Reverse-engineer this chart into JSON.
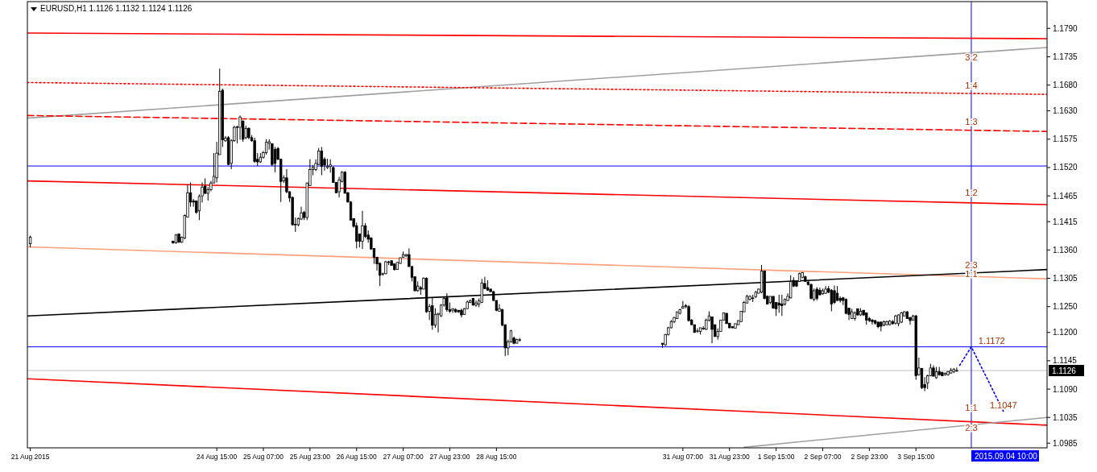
{
  "chart_data": {
    "type": "candlestick",
    "title": "EURUSD,H1  1.1126 1.1132 1.1124 1.1126",
    "x": [
      "2015-08-21T23:00",
      "2015-08-24T00:00",
      "2015-08-24T01:00",
      "2015-08-24T02:00",
      "2015-08-24T03:00",
      "2015-08-24T04:00",
      "2015-08-24T05:00",
      "2015-08-24T06:00",
      "2015-08-24T07:00",
      "2015-08-24T08:00",
      "2015-08-24T09:00",
      "2015-08-24T10:00",
      "2015-08-24T11:00",
      "2015-08-24T12:00",
      "2015-08-24T13:00",
      "2015-08-24T14:00",
      "2015-08-24T15:00",
      "2015-08-24T16:00",
      "2015-08-24T17:00",
      "2015-08-24T18:00",
      "2015-08-24T19:00",
      "2015-08-24T20:00",
      "2015-08-24T21:00",
      "2015-08-24T22:00",
      "2015-08-24T23:00",
      "2015-08-25T00:00",
      "2015-08-25T01:00",
      "2015-08-25T02:00",
      "2015-08-25T03:00",
      "2015-08-25T04:00",
      "2015-08-25T05:00",
      "2015-08-25T06:00",
      "2015-08-25T07:00",
      "2015-08-25T08:00",
      "2015-08-25T09:00",
      "2015-08-25T10:00",
      "2015-08-25T11:00",
      "2015-08-25T12:00",
      "2015-08-25T13:00",
      "2015-08-25T14:00",
      "2015-08-25T15:00",
      "2015-08-25T16:00",
      "2015-08-25T17:00",
      "2015-08-25T18:00",
      "2015-08-25T19:00",
      "2015-08-25T20:00",
      "2015-08-25T21:00",
      "2015-08-25T22:00",
      "2015-08-25T23:00",
      "2015-08-26T00:00",
      "2015-08-26T01:00",
      "2015-08-26T02:00",
      "2015-08-26T03:00",
      "2015-08-26T04:00",
      "2015-08-26T05:00",
      "2015-08-26T06:00",
      "2015-08-26T07:00",
      "2015-08-26T08:00",
      "2015-08-26T09:00",
      "2015-08-26T10:00",
      "2015-08-26T11:00",
      "2015-08-26T12:00",
      "2015-08-26T13:00",
      "2015-08-26T14:00",
      "2015-08-26T15:00",
      "2015-08-26T16:00",
      "2015-08-26T17:00",
      "2015-08-26T18:00",
      "2015-08-26T19:00",
      "2015-08-26T20:00",
      "2015-08-26T21:00",
      "2015-08-26T22:00",
      "2015-08-26T23:00",
      "2015-08-27T00:00",
      "2015-08-27T01:00",
      "2015-08-27T02:00",
      "2015-08-27T03:00",
      "2015-08-27T04:00",
      "2015-08-27T05:00",
      "2015-08-27T06:00",
      "2015-08-27T07:00",
      "2015-08-27T08:00",
      "2015-08-27T09:00",
      "2015-08-27T10:00",
      "2015-08-27T11:00",
      "2015-08-27T12:00",
      "2015-08-27T13:00",
      "2015-08-27T14:00",
      "2015-08-27T15:00",
      "2015-08-27T16:00",
      "2015-08-27T17:00",
      "2015-08-27T18:00",
      "2015-08-27T19:00",
      "2015-08-27T20:00",
      "2015-08-27T21:00",
      "2015-08-27T22:00",
      "2015-08-27T23:00",
      "2015-08-28T00:00",
      "2015-08-28T01:00",
      "2015-08-28T02:00",
      "2015-08-28T03:00",
      "2015-08-28T04:00",
      "2015-08-28T05:00",
      "2015-08-28T06:00",
      "2015-08-28T07:00",
      "2015-08-28T08:00",
      "2015-08-28T09:00",
      "2015-08-28T10:00",
      "2015-08-28T11:00",
      "2015-08-28T12:00",
      "2015-08-28T13:00",
      "2015-08-28T14:00",
      "2015-08-28T15:00",
      "2015-08-28T16:00",
      "2015-08-28T17:00",
      "2015-08-28T18:00",
      "2015-08-28T19:00",
      "2015-08-28T20:00",
      "2015-08-28T21:00",
      "2015-08-28T22:00",
      "2015-08-28T23:00",
      "2015-08-31T00:00",
      "2015-08-31T01:00",
      "2015-08-31T02:00",
      "2015-08-31T03:00",
      "2015-08-31T04:00",
      "2015-08-31T05:00",
      "2015-08-31T06:00",
      "2015-08-31T07:00",
      "2015-08-31T08:00",
      "2015-08-31T09:00",
      "2015-08-31T10:00",
      "2015-08-31T11:00",
      "2015-08-31T12:00",
      "2015-08-31T13:00",
      "2015-08-31T14:00",
      "2015-08-31T15:00",
      "2015-08-31T16:00",
      "2015-08-31T17:00",
      "2015-08-31T18:00",
      "2015-08-31T19:00",
      "2015-08-31T20:00",
      "2015-08-31T21:00",
      "2015-08-31T22:00",
      "2015-08-31T23:00",
      "2015-09-01T00:00",
      "2015-09-01T01:00",
      "2015-09-01T02:00",
      "2015-09-01T03:00",
      "2015-09-01T04:00",
      "2015-09-01T05:00",
      "2015-09-01T06:00",
      "2015-09-01T07:00",
      "2015-09-01T08:00",
      "2015-09-01T09:00",
      "2015-09-01T10:00",
      "2015-09-01T11:00",
      "2015-09-01T12:00",
      "2015-09-01T13:00",
      "2015-09-01T14:00",
      "2015-09-01T15:00",
      "2015-09-01T16:00",
      "2015-09-01T17:00",
      "2015-09-01T18:00",
      "2015-09-01T19:00",
      "2015-09-01T20:00",
      "2015-09-01T21:00",
      "2015-09-01T22:00",
      "2015-09-01T23:00",
      "2015-09-02T00:00",
      "2015-09-02T01:00",
      "2015-09-02T02:00",
      "2015-09-02T03:00",
      "2015-09-02T04:00",
      "2015-09-02T05:00",
      "2015-09-02T06:00",
      "2015-09-02T07:00",
      "2015-09-02T08:00",
      "2015-09-02T09:00",
      "2015-09-02T10:00",
      "2015-09-02T11:00",
      "2015-09-02T12:00",
      "2015-09-02T13:00",
      "2015-09-02T14:00",
      "2015-09-02T15:00",
      "2015-09-02T16:00",
      "2015-09-02T17:00",
      "2015-09-02T18:00",
      "2015-09-02T19:00",
      "2015-09-02T20:00",
      "2015-09-02T21:00",
      "2015-09-02T22:00",
      "2015-09-02T23:00",
      "2015-09-03T00:00",
      "2015-09-03T01:00",
      "2015-09-03T02:00",
      "2015-09-03T03:00",
      "2015-09-03T04:00",
      "2015-09-03T05:00",
      "2015-09-03T06:00",
      "2015-09-03T07:00",
      "2015-09-03T08:00",
      "2015-09-03T09:00",
      "2015-09-03T10:00",
      "2015-09-03T11:00",
      "2015-09-03T12:00",
      "2015-09-03T13:00",
      "2015-09-03T14:00",
      "2015-09-03T15:00",
      "2015-09-03T16:00",
      "2015-09-03T17:00",
      "2015-09-03T18:00",
      "2015-09-03T19:00",
      "2015-09-03T20:00",
      "2015-09-03T21:00",
      "2015-09-03T22:00",
      "2015-09-03T23:00",
      "2015-09-04T00:00",
      "2015-09-04T01:00",
      "2015-09-04T02:00",
      "2015-09-04T03:00",
      "2015-09-04T04:00",
      "2015-09-04T05:00"
    ],
    "ohlc": [
      [
        1.1372,
        1.1388,
        1.1365,
        1.1385
      ],
      [
        1.1377,
        1.1378,
        1.1372,
        1.1374
      ],
      [
        1.1374,
        1.1391,
        1.1372,
        1.1389
      ],
      [
        1.1391,
        1.1392,
        1.1374,
        1.1375
      ],
      [
        1.1375,
        1.1386,
        1.1374,
        1.1385
      ],
      [
        1.1383,
        1.1429,
        1.1381,
        1.1427
      ],
      [
        1.1424,
        1.1487,
        1.1423,
        1.1471
      ],
      [
        1.1471,
        1.1491,
        1.1444,
        1.1453
      ],
      [
        1.1455,
        1.1459,
        1.1444,
        1.1453
      ],
      [
        1.1455,
        1.1456,
        1.143,
        1.1433
      ],
      [
        1.1436,
        1.1468,
        1.1418,
        1.1464
      ],
      [
        1.1465,
        1.1491,
        1.1452,
        1.1482
      ],
      [
        1.1484,
        1.1499,
        1.1468,
        1.147
      ],
      [
        1.147,
        1.1482,
        1.1456,
        1.1477
      ],
      [
        1.1477,
        1.1494,
        1.1474,
        1.149
      ],
      [
        1.149,
        1.1548,
        1.149,
        1.1503
      ],
      [
        1.15,
        1.157,
        1.1491,
        1.1548
      ],
      [
        1.1545,
        1.1712,
        1.1545,
        1.1668
      ],
      [
        1.167,
        1.1673,
        1.156,
        1.1574
      ],
      [
        1.1572,
        1.1581,
        1.157,
        1.1577
      ],
      [
        1.1578,
        1.1581,
        1.1525,
        1.1526
      ],
      [
        1.1528,
        1.1575,
        1.1517,
        1.1572
      ],
      [
        1.1572,
        1.1601,
        1.157,
        1.1598
      ],
      [
        1.1598,
        1.1601,
        1.1567,
        1.1599
      ],
      [
        1.1598,
        1.1621,
        1.1574,
        1.1618
      ],
      [
        1.161,
        1.1612,
        1.157,
        1.1575
      ],
      [
        1.1578,
        1.1601,
        1.1575,
        1.1596
      ],
      [
        1.1596,
        1.1598,
        1.1575,
        1.1578
      ],
      [
        1.1578,
        1.1583,
        1.157,
        1.1572
      ],
      [
        1.1572,
        1.1578,
        1.1529,
        1.1532
      ],
      [
        1.1536,
        1.1548,
        1.1523,
        1.1531
      ],
      [
        1.1531,
        1.1548,
        1.1529,
        1.154
      ],
      [
        1.154,
        1.1552,
        1.1537,
        1.1549
      ],
      [
        1.1549,
        1.1575,
        1.1545,
        1.1569
      ],
      [
        1.1567,
        1.1575,
        1.1555,
        1.157
      ],
      [
        1.1566,
        1.1567,
        1.1523,
        1.1526
      ],
      [
        1.1555,
        1.156,
        1.1511,
        1.1528
      ],
      [
        1.1557,
        1.156,
        1.1534,
        1.1536
      ],
      [
        1.1536,
        1.1537,
        1.1453,
        1.1493
      ],
      [
        1.1494,
        1.1505,
        1.149,
        1.15
      ],
      [
        1.15,
        1.1517,
        1.147,
        1.1473
      ],
      [
        1.1473,
        1.1474,
        1.1453,
        1.1461
      ],
      [
        1.1462,
        1.1464,
        1.1407,
        1.1409
      ],
      [
        1.141,
        1.1423,
        1.1395,
        1.1409
      ],
      [
        1.1409,
        1.1423,
        1.1406,
        1.1421
      ],
      [
        1.142,
        1.1444,
        1.1418,
        1.1432
      ],
      [
        1.1433,
        1.1436,
        1.1418,
        1.1423
      ],
      [
        1.1423,
        1.1491,
        1.1418,
        1.149
      ],
      [
        1.1485,
        1.1536,
        1.1484,
        1.1516
      ],
      [
        1.1516,
        1.1525,
        1.1505,
        1.152
      ],
      [
        1.1516,
        1.1536,
        1.1513,
        1.1528
      ],
      [
        1.1526,
        1.1558,
        1.1525,
        1.1552
      ],
      [
        1.1552,
        1.156,
        1.1505,
        1.1522
      ],
      [
        1.1536,
        1.154,
        1.1514,
        1.1525
      ],
      [
        1.152,
        1.1537,
        1.1517,
        1.1522
      ],
      [
        1.1522,
        1.1536,
        1.151,
        1.1525
      ],
      [
        1.152,
        1.1522,
        1.149,
        1.1491
      ],
      [
        1.1491,
        1.1491,
        1.147,
        1.1471
      ],
      [
        1.1473,
        1.1502,
        1.1462,
        1.1496
      ],
      [
        1.1493,
        1.1513,
        1.1491,
        1.1511
      ],
      [
        1.1511,
        1.1513,
        1.147,
        1.147
      ],
      [
        1.1471,
        1.1473,
        1.1452,
        1.1453
      ],
      [
        1.1453,
        1.1455,
        1.1418,
        1.1418
      ],
      [
        1.1421,
        1.1421,
        1.1403,
        1.1406
      ],
      [
        1.1407,
        1.1413,
        1.1363,
        1.1377
      ],
      [
        1.1391,
        1.1391,
        1.1365,
        1.1377
      ],
      [
        1.1377,
        1.1436,
        1.1362,
        1.1407
      ],
      [
        1.1407,
        1.1412,
        1.1383,
        1.1386
      ],
      [
        1.1389,
        1.1398,
        1.1374,
        1.1381
      ],
      [
        1.1383,
        1.1385,
        1.136,
        1.1362
      ],
      [
        1.1363,
        1.1363,
        1.1333,
        1.1346
      ],
      [
        1.1346,
        1.1346,
        1.132,
        1.1333
      ],
      [
        1.1334,
        1.1336,
        1.129,
        1.1311
      ],
      [
        1.1313,
        1.1316,
        1.131,
        1.1314
      ],
      [
        1.1314,
        1.1339,
        1.1313,
        1.1337
      ],
      [
        1.1336,
        1.1339,
        1.1331,
        1.1337
      ],
      [
        1.1339,
        1.134,
        1.133,
        1.133
      ],
      [
        1.1333,
        1.1333,
        1.132,
        1.1322
      ],
      [
        1.1322,
        1.1336,
        1.1322,
        1.1336
      ],
      [
        1.1334,
        1.1345,
        1.1333,
        1.1345
      ],
      [
        1.1346,
        1.1357,
        1.1345,
        1.1351
      ],
      [
        1.1349,
        1.1352,
        1.1346,
        1.1351
      ],
      [
        1.1351,
        1.1363,
        1.1327,
        1.1328
      ],
      [
        1.1328,
        1.1328,
        1.1299,
        1.1307
      ],
      [
        1.1308,
        1.1308,
        1.1279,
        1.1281
      ],
      [
        1.1281,
        1.1299,
        1.1279,
        1.129
      ],
      [
        1.1287,
        1.129,
        1.1273,
        1.1284
      ],
      [
        1.1284,
        1.1307,
        1.1284,
        1.1305
      ],
      [
        1.1305,
        1.1307,
        1.1238,
        1.124
      ],
      [
        1.1241,
        1.1255,
        1.1224,
        1.125
      ],
      [
        1.1252,
        1.1267,
        1.1205,
        1.1214
      ],
      [
        1.1214,
        1.1247,
        1.1209,
        1.1235
      ],
      [
        1.1235,
        1.1237,
        1.12,
        1.1237
      ],
      [
        1.1232,
        1.1255,
        1.123,
        1.1253
      ],
      [
        1.1253,
        1.1269,
        1.125,
        1.1266
      ],
      [
        1.1267,
        1.1276,
        1.124,
        1.1244
      ],
      [
        1.1244,
        1.1258,
        1.1238,
        1.1241
      ],
      [
        1.1243,
        1.1247,
        1.1238,
        1.1246
      ],
      [
        1.1244,
        1.1247,
        1.1238,
        1.124
      ],
      [
        1.1243,
        1.1243,
        1.1238,
        1.124
      ],
      [
        1.1243,
        1.1246,
        1.1229,
        1.1234
      ],
      [
        1.1235,
        1.1247,
        1.1234,
        1.1246
      ],
      [
        1.1246,
        1.1262,
        1.1246,
        1.1259
      ],
      [
        1.1258,
        1.1264,
        1.1257,
        1.1261
      ],
      [
        1.1266,
        1.1267,
        1.1252,
        1.1253
      ],
      [
        1.1253,
        1.1262,
        1.125,
        1.1257
      ],
      [
        1.1255,
        1.1266,
        1.1249,
        1.1261
      ],
      [
        1.1258,
        1.1304,
        1.1257,
        1.1296
      ],
      [
        1.1295,
        1.1308,
        1.1284,
        1.1285
      ],
      [
        1.1287,
        1.1301,
        1.1281,
        1.1282
      ],
      [
        1.1284,
        1.1285,
        1.1279,
        1.1279
      ],
      [
        1.1279,
        1.1281,
        1.1261,
        1.1262
      ],
      [
        1.1262,
        1.1262,
        1.1241,
        1.1243
      ],
      [
        1.1241,
        1.1255,
        1.124,
        1.1246
      ],
      [
        1.1244,
        1.1246,
        1.1212,
        1.1214
      ],
      [
        1.1215,
        1.1215,
        1.1154,
        1.117
      ],
      [
        1.117,
        1.1186,
        1.1156,
        1.1182
      ],
      [
        1.1182,
        1.1205,
        1.118,
        1.1203
      ],
      [
        1.1189,
        1.1192,
        1.1177,
        1.1179
      ],
      [
        1.1179,
        1.1188,
        1.1179,
        1.1186
      ],
      [
        1.1185,
        1.1189,
        1.1182,
        1.1186
      ],
      [
        1.1179,
        1.1179,
        1.117,
        1.1177
      ],
      [
        1.1176,
        1.1197,
        1.1174,
        1.1196
      ],
      [
        1.1196,
        1.1211,
        1.1194,
        1.1209
      ],
      [
        1.1209,
        1.1224,
        1.1208,
        1.1221
      ],
      [
        1.1221,
        1.123,
        1.1218,
        1.1229
      ],
      [
        1.1227,
        1.124,
        1.1226,
        1.124
      ],
      [
        1.1237,
        1.1246,
        1.1235,
        1.1244
      ],
      [
        1.1247,
        1.1261,
        1.1246,
        1.125
      ],
      [
        1.125,
        1.1255,
        1.1247,
        1.1252
      ],
      [
        1.125,
        1.1253,
        1.1221,
        1.1223
      ],
      [
        1.1224,
        1.1226,
        1.1214,
        1.1215
      ],
      [
        1.1215,
        1.1215,
        1.1199,
        1.12
      ],
      [
        1.1203,
        1.1208,
        1.1199,
        1.1203
      ],
      [
        1.1202,
        1.1209,
        1.1196,
        1.1209
      ],
      [
        1.1208,
        1.1212,
        1.1205,
        1.1208
      ],
      [
        1.1206,
        1.1227,
        1.1205,
        1.1224
      ],
      [
        1.1224,
        1.1241,
        1.1221,
        1.1232
      ],
      [
        1.123,
        1.123,
        1.1179,
        1.1206
      ],
      [
        1.1215,
        1.1215,
        1.1192,
        1.1192
      ],
      [
        1.1192,
        1.1208,
        1.1186,
        1.1202
      ],
      [
        1.1202,
        1.1224,
        1.1202,
        1.1224
      ],
      [
        1.1224,
        1.1238,
        1.1223,
        1.1238
      ],
      [
        1.1237,
        1.1238,
        1.1217,
        1.1217
      ],
      [
        1.1218,
        1.1218,
        1.1208,
        1.1209
      ],
      [
        1.1211,
        1.1212,
        1.1208,
        1.1209
      ],
      [
        1.1208,
        1.1217,
        1.1208,
        1.1217
      ],
      [
        1.1215,
        1.1223,
        1.1215,
        1.1223
      ],
      [
        1.1221,
        1.1241,
        1.122,
        1.1241
      ],
      [
        1.124,
        1.1261,
        1.124,
        1.1258
      ],
      [
        1.1257,
        1.1273,
        1.1257,
        1.127
      ],
      [
        1.1264,
        1.1272,
        1.1262,
        1.127
      ],
      [
        1.1266,
        1.1273,
        1.1259,
        1.1267
      ],
      [
        1.1269,
        1.1281,
        1.1267,
        1.1278
      ],
      [
        1.1276,
        1.1285,
        1.1276,
        1.1284
      ],
      [
        1.1278,
        1.1331,
        1.1276,
        1.1319
      ],
      [
        1.1319,
        1.132,
        1.1264,
        1.1266
      ],
      [
        1.127,
        1.1272,
        1.1255,
        1.1255
      ],
      [
        1.1258,
        1.127,
        1.1255,
        1.127
      ],
      [
        1.127,
        1.127,
        1.1246,
        1.1247
      ],
      [
        1.1258,
        1.1259,
        1.1232,
        1.1246
      ],
      [
        1.1257,
        1.1273,
        1.1238,
        1.1253
      ],
      [
        1.1255,
        1.1273,
        1.1232,
        1.1252
      ],
      [
        1.1255,
        1.1266,
        1.1252,
        1.1264
      ],
      [
        1.1262,
        1.1276,
        1.1261,
        1.127
      ],
      [
        1.1267,
        1.1311,
        1.1266,
        1.1299
      ],
      [
        1.1301,
        1.1307,
        1.1288,
        1.129
      ],
      [
        1.1299,
        1.1301,
        1.1288,
        1.129
      ],
      [
        1.1299,
        1.1316,
        1.1298,
        1.1314
      ],
      [
        1.1307,
        1.1317,
        1.1305,
        1.1316
      ],
      [
        1.1308,
        1.131,
        1.1298,
        1.1299
      ],
      [
        1.1298,
        1.1299,
        1.1291,
        1.1293
      ],
      [
        1.1293,
        1.1295,
        1.1264,
        1.1266
      ],
      [
        1.1264,
        1.1285,
        1.1261,
        1.1281
      ],
      [
        1.1284,
        1.1288,
        1.1262,
        1.1266
      ],
      [
        1.1282,
        1.1287,
        1.1272,
        1.1273
      ],
      [
        1.1275,
        1.1285,
        1.1273,
        1.1281
      ],
      [
        1.1276,
        1.129,
        1.1275,
        1.1284
      ],
      [
        1.1285,
        1.129,
        1.1276,
        1.1278
      ],
      [
        1.1282,
        1.1284,
        1.1241,
        1.1255
      ],
      [
        1.1281,
        1.1291,
        1.1255,
        1.1258
      ],
      [
        1.1276,
        1.129,
        1.1261,
        1.1262
      ],
      [
        1.1266,
        1.127,
        1.1258,
        1.1262
      ],
      [
        1.1267,
        1.1269,
        1.1253,
        1.1262
      ],
      [
        1.1264,
        1.1266,
        1.1235,
        1.1237
      ],
      [
        1.1247,
        1.1247,
        1.1224,
        1.1235
      ],
      [
        1.1227,
        1.1246,
        1.1226,
        1.124
      ],
      [
        1.1227,
        1.1241,
        1.1223,
        1.1238
      ],
      [
        1.1246,
        1.1246,
        1.1232,
        1.1234
      ],
      [
        1.1234,
        1.1247,
        1.1232,
        1.1241
      ],
      [
        1.1243,
        1.1243,
        1.1232,
        1.1234
      ],
      [
        1.1238,
        1.1238,
        1.1215,
        1.1224
      ],
      [
        1.1227,
        1.123,
        1.122,
        1.1223
      ],
      [
        1.1224,
        1.1226,
        1.1215,
        1.1221
      ],
      [
        1.1223,
        1.1224,
        1.1215,
        1.1218
      ],
      [
        1.122,
        1.1221,
        1.1208,
        1.1211
      ],
      [
        1.122,
        1.1221,
        1.1202,
        1.1212
      ],
      [
        1.1214,
        1.1223,
        1.1212,
        1.1221
      ],
      [
        1.1215,
        1.1223,
        1.1214,
        1.1221
      ],
      [
        1.1215,
        1.1224,
        1.1214,
        1.1222
      ],
      [
        1.1221,
        1.1224,
        1.1215,
        1.1217
      ],
      [
        1.1218,
        1.1234,
        1.1215,
        1.1232
      ],
      [
        1.1217,
        1.1235,
        1.1212,
        1.1234
      ],
      [
        1.122,
        1.124,
        1.1218,
        1.1238
      ],
      [
        1.1232,
        1.1241,
        1.1232,
        1.124
      ],
      [
        1.124,
        1.1241,
        1.1226,
        1.1227
      ],
      [
        1.1229,
        1.123,
        1.1215,
        1.1223
      ],
      [
        1.1224,
        1.1234,
        1.1223,
        1.1232
      ],
      [
        1.1232,
        1.1234,
        1.1108,
        1.1116
      ],
      [
        1.1118,
        1.1151,
        1.1116,
        1.1131
      ],
      [
        1.113,
        1.113,
        1.109,
        1.1093
      ],
      [
        1.1099,
        1.1113,
        1.1086,
        1.1093
      ],
      [
        1.1102,
        1.1118,
        1.109,
        1.1116
      ],
      [
        1.1116,
        1.1139,
        1.1115,
        1.1131
      ],
      [
        1.1131,
        1.1136,
        1.1115,
        1.1115
      ],
      [
        1.1112,
        1.1133,
        1.111,
        1.1124
      ],
      [
        1.1124,
        1.1133,
        1.1116,
        1.1118
      ],
      [
        1.1122,
        1.1124,
        1.1115,
        1.1116
      ],
      [
        1.1118,
        1.1122,
        1.1116,
        1.1121
      ],
      [
        1.1118,
        1.1125,
        1.1116,
        1.1124
      ],
      [
        1.1121,
        1.1131,
        1.1121,
        1.1127
      ],
      [
        1.1124,
        1.1131,
        1.1121,
        1.1128
      ],
      [
        1.1126,
        1.1132,
        1.1124,
        1.1126
      ]
    ],
    "xlim": [
      "2015-08-21T22:00",
      "2015-09-05T12:00"
    ],
    "ylim": [
      1.0976,
      1.1842
    ],
    "xticks": [
      {
        "value": "2015-08-21T23:00",
        "label": "21 Aug 2015"
      },
      {
        "value": "2015-08-24T15:00",
        "label": "24 Aug 15:00"
      },
      {
        "value": "2015-08-25T07:00",
        "label": "25 Aug 07:00"
      },
      {
        "value": "2015-08-25T23:00",
        "label": "25 Aug 23:00"
      },
      {
        "value": "2015-08-26T15:00",
        "label": "26 Aug 15:00"
      },
      {
        "value": "2015-08-27T07:00",
        "label": "27 Aug 07:00"
      },
      {
        "value": "2015-08-27T23:00",
        "label": "27 Aug 23:00"
      },
      {
        "value": "2015-08-28T15:00",
        "label": "28 Aug 15:00"
      },
      {
        "value": "2015-08-31T07:00",
        "label": "31 Aug 07:00"
      },
      {
        "value": "2015-08-31T23:00",
        "label": "31 Aug 23:00"
      },
      {
        "value": "2015-09-01T15:00",
        "label": "1 Sep 15:00"
      },
      {
        "value": "2015-09-02T07:00",
        "label": "2 Sep 07:00"
      },
      {
        "value": "2015-09-02T23:00",
        "label": "2 Sep 23:00"
      },
      {
        "value": "2015-09-03T15:00",
        "label": "3 Sep 15:00"
      }
    ],
    "yticks": [
      {
        "value": 1.179,
        "label": "1.1790"
      },
      {
        "value": 1.1735,
        "label": "1.1735"
      },
      {
        "value": 1.168,
        "label": "1.1680"
      },
      {
        "value": 1.163,
        "label": "1.1630"
      },
      {
        "value": 1.1575,
        "label": "1.1575"
      },
      {
        "value": 1.152,
        "label": "1.1520"
      },
      {
        "value": 1.1465,
        "label": "1.1465"
      },
      {
        "value": 1.1415,
        "label": "1.1415"
      },
      {
        "value": 1.136,
        "label": "1.1360"
      },
      {
        "value": 1.1305,
        "label": "1.1305"
      },
      {
        "value": 1.125,
        "label": "1.1250"
      },
      {
        "value": 1.12,
        "label": "1.1200"
      },
      {
        "value": 1.1145,
        "label": "1.1145"
      },
      {
        "value": 1.109,
        "label": "1.1090"
      },
      {
        "value": 1.1035,
        "label": "1.1035"
      },
      {
        "value": 1.0985,
        "label": "1.0985"
      }
    ],
    "series": [
      {
        "type": "line",
        "color": "#ff0000",
        "line_style": "solid",
        "x": [
          "2015-08-21T22:00",
          "2015-09-05T12:00"
        ],
        "values": [
          1.1781,
          1.177
        ]
      },
      {
        "type": "line",
        "color": "#a0a0a0",
        "line_style": "solid",
        "x": [
          "2015-08-21T22:00",
          "2015-09-05T12:00"
        ],
        "values": [
          1.1616,
          1.1753
        ]
      },
      {
        "type": "line",
        "color": "#ff0000",
        "line_style": "dotted",
        "x": [
          "2015-08-21T22:00",
          "2015-09-05T12:00"
        ],
        "values": [
          1.1685,
          1.1662
        ]
      },
      {
        "type": "line",
        "color": "#ff0000",
        "line_style": "dashed",
        "x": [
          "2015-08-21T22:00",
          "2015-09-05T12:00"
        ],
        "values": [
          1.1621,
          1.159
        ]
      },
      {
        "type": "line",
        "color": "#ff0000",
        "line_style": "solid",
        "x": [
          "2015-08-21T22:00",
          "2015-09-05T12:00"
        ],
        "values": [
          1.1494,
          1.1448
        ]
      },
      {
        "type": "line",
        "color": "#ffa07a",
        "line_style": "solid",
        "x": [
          "2015-08-21T22:00",
          "2015-09-05T12:00"
        ],
        "values": [
          1.1366,
          1.1304
        ]
      },
      {
        "type": "line",
        "color": "#000000",
        "line_style": "solid",
        "x": [
          "2015-08-21T22:00",
          "2015-09-05T12:00"
        ],
        "values": [
          1.1232,
          1.1322
        ]
      },
      {
        "type": "line",
        "color": "#ff0000",
        "line_style": "solid",
        "x": [
          "2015-08-21T22:00",
          "2015-09-05T12:00"
        ],
        "values": [
          1.111,
          1.102
        ]
      },
      {
        "type": "line",
        "color": "#a0a0a0",
        "line_style": "solid",
        "x": [
          "2015-09-01T04:00",
          "2015-09-05T12:00"
        ],
        "values": [
          1.0977,
          1.1035
        ]
      },
      {
        "type": "line",
        "color": "#0000ff",
        "line_style": "dotted",
        "x": [
          "2015-09-04T06:00",
          "2015-09-04T10:00",
          "2015-09-04T21:00"
        ],
        "values": [
          1.1136,
          1.1172,
          1.1047
        ]
      }
    ],
    "ref_lines": [
      {
        "axis": "y",
        "value": 1.1523,
        "color": "#0000ff"
      },
      {
        "axis": "y",
        "value": 1.1172,
        "color": "#0000ff"
      },
      {
        "axis": "y",
        "value": 1.1126,
        "label": "1.1126",
        "color": "#c0c0c0"
      },
      {
        "axis": "x",
        "value": "2015-09-04T10:00",
        "label": "2015.09.04 10:00",
        "color": "#0000ff"
      }
    ],
    "annotations": [
      {
        "text": "3:2",
        "x": "2015-09-04T10:00",
        "y": 1.1721
      },
      {
        "text": "1:4",
        "x": "2015-09-04T10:00",
        "y": 1.1667
      },
      {
        "text": "1:3",
        "x": "2015-09-04T10:00",
        "y": 1.1597
      },
      {
        "text": "1:2",
        "x": "2015-09-04T10:00",
        "y": 1.1459
      },
      {
        "text": "2:3",
        "x": "2015-09-04T10:00",
        "y": 1.1318
      },
      {
        "text": "1:1",
        "x": "2015-09-04T10:00",
        "y": 1.1301
      },
      {
        "text": "1:1",
        "x": "2015-09-04T10:00",
        "y": 1.1041
      },
      {
        "text": "2:3",
        "x": "2015-09-04T10:00",
        "y": 1.1003
      },
      {
        "text": "1.1172",
        "x": "2015-09-04T17:00",
        "y": 1.1172
      },
      {
        "text": "1.1047",
        "x": "2015-09-04T21:00",
        "y": 1.1047
      }
    ]
  }
}
